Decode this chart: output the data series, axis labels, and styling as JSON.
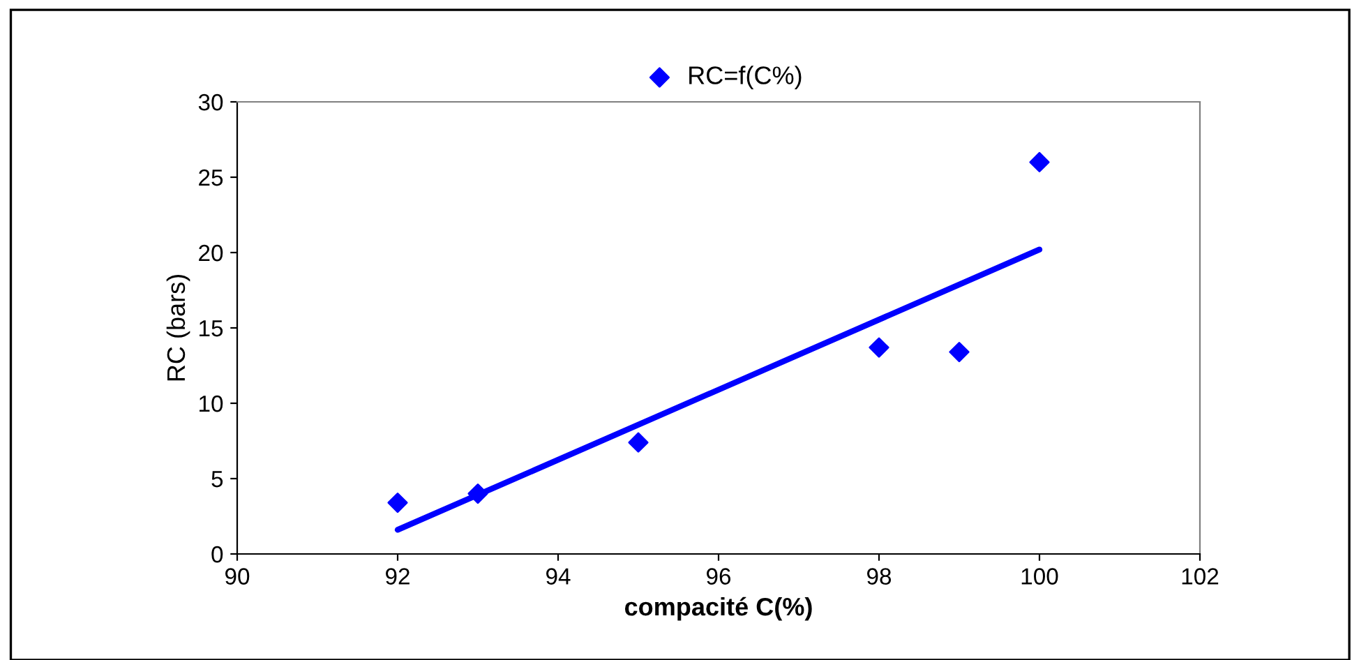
{
  "chart_data": {
    "type": "scatter",
    "xlabel": "compacité C(%)",
    "ylabel": "RC (bars)",
    "xlim": [
      90,
      102
    ],
    "xticks": [
      90,
      92,
      94,
      96,
      98,
      100,
      102
    ],
    "ylim": [
      0,
      30
    ],
    "yticks": [
      0,
      5,
      10,
      15,
      20,
      25,
      30
    ],
    "grid": false,
    "legend": "top",
    "marker": "diamond",
    "series": [
      {
        "name": "RC=f(C%)",
        "color": "#0000ff",
        "x": [
          92,
          93,
          95,
          98,
          99,
          100
        ],
        "values": [
          3.4,
          4.0,
          7.4,
          13.7,
          13.4,
          26
        ]
      },
      {
        "type": "line",
        "color": "#0000ff",
        "x": [
          92,
          100
        ],
        "values": [
          1.6,
          20.2
        ],
        "marker": "none",
        "line_style": "solid"
      }
    ]
  }
}
